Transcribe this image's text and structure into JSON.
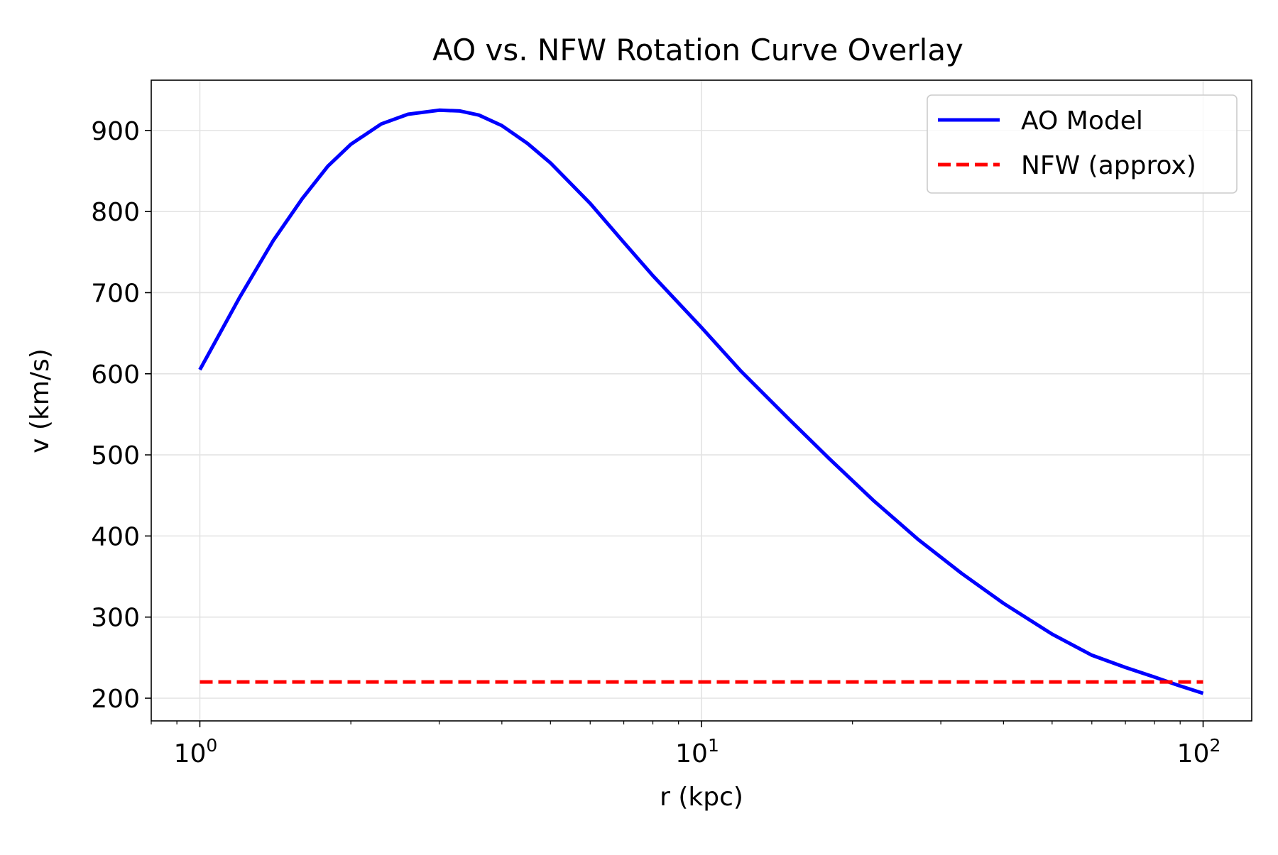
{
  "chart_data": {
    "type": "line",
    "title": "AO vs. NFW Rotation Curve Overlay",
    "xlabel": "r (kpc)",
    "ylabel": "v (km/s)",
    "x_scale": "log",
    "xlim": [
      0.8,
      125
    ],
    "ylim": [
      172,
      962
    ],
    "grid": true,
    "legend_position": "top-right",
    "x_ticks": [
      {
        "base": "10",
        "exp": "0",
        "value": 1
      },
      {
        "base": "10",
        "exp": "1",
        "value": 10
      },
      {
        "base": "10",
        "exp": "2",
        "value": 100
      }
    ],
    "y_ticks": [
      200,
      300,
      400,
      500,
      600,
      700,
      800,
      900
    ],
    "series": [
      {
        "name": "AO Model",
        "color": "#0000ff",
        "style": "solid",
        "x": [
          1.0,
          1.2,
          1.4,
          1.6,
          1.8,
          2.0,
          2.3,
          2.6,
          3.0,
          3.3,
          3.6,
          4.0,
          4.5,
          5.0,
          6.0,
          7.0,
          8.0,
          10.0,
          12.0,
          15.0,
          18.0,
          22.0,
          27.0,
          33.0,
          40.0,
          50.0,
          60.0,
          70.0,
          80.0,
          90.0,
          100.0
        ],
        "y": [
          605,
          694,
          764,
          816,
          856,
          883,
          908,
          920,
          925,
          924,
          919,
          906,
          884,
          860,
          810,
          762,
          721,
          657,
          603,
          543,
          495,
          444,
          396,
          354,
          317,
          279,
          253,
          238,
          226,
          215,
          206
        ]
      },
      {
        "name": "NFW (approx)",
        "color": "#ff0000",
        "style": "dashed",
        "x": [
          1.0,
          100.0
        ],
        "y": [
          220,
          220
        ]
      }
    ]
  }
}
